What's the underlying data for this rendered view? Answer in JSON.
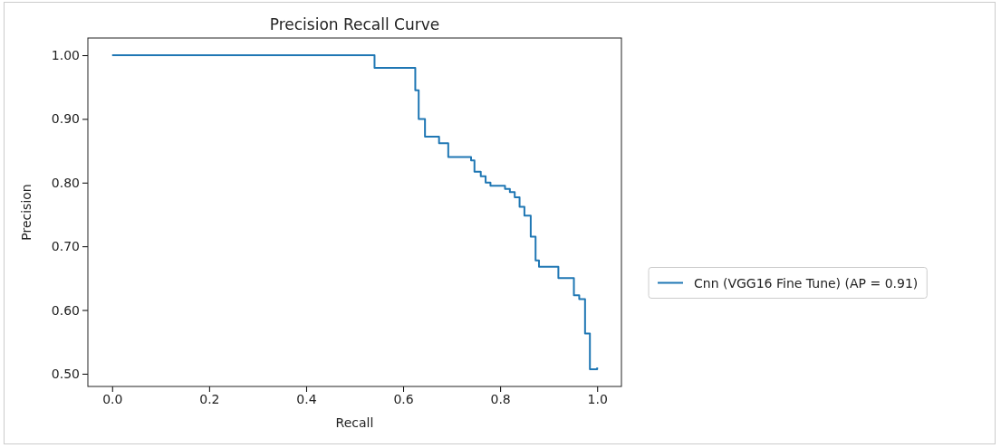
{
  "chart_data": {
    "type": "step",
    "title": "Precision Recall Curve",
    "xlabel": "Recall",
    "ylabel": "Precision",
    "xlim": [
      -0.05,
      1.05
    ],
    "ylim": [
      0.48,
      1.027
    ],
    "xticks": [
      {
        "value": 0,
        "label": "0.0"
      },
      {
        "value": 0.2,
        "label": "0.2"
      },
      {
        "value": 0.4,
        "label": "0.4"
      },
      {
        "value": 0.6,
        "label": "0.6"
      },
      {
        "value": 0.8,
        "label": "0.8"
      },
      {
        "value": 1,
        "label": "1.0"
      }
    ],
    "yticks": [
      {
        "value": 0.5,
        "label": "0.50"
      },
      {
        "value": 0.6,
        "label": "0.60"
      },
      {
        "value": 0.7,
        "label": "0.70"
      },
      {
        "value": 0.8,
        "label": "0.80"
      },
      {
        "value": 0.9,
        "label": "0.90"
      },
      {
        "value": 1,
        "label": "1.00"
      }
    ],
    "grid": false,
    "legend": "right",
    "series": [
      {
        "name": "Cnn (VGG16 Fine Tune) (AP = 0.91)",
        "color": "#1f77b4",
        "x": [
          0,
          0.541,
          0.625,
          0.632,
          0.645,
          0.674,
          0.693,
          0.74,
          0.747,
          0.76,
          0.77,
          0.78,
          0.81,
          0.82,
          0.83,
          0.84,
          0.85,
          0.863,
          0.873,
          0.88,
          0.92,
          0.952,
          0.963,
          0.975,
          0.985,
          1.0
        ],
        "values": [
          1.0,
          0.98,
          0.945,
          0.9,
          0.872,
          0.862,
          0.84,
          0.835,
          0.817,
          0.81,
          0.8,
          0.795,
          0.79,
          0.785,
          0.777,
          0.762,
          0.748,
          0.715,
          0.678,
          0.668,
          0.65,
          0.623,
          0.617,
          0.563,
          0.507,
          0.51
        ]
      }
    ]
  }
}
